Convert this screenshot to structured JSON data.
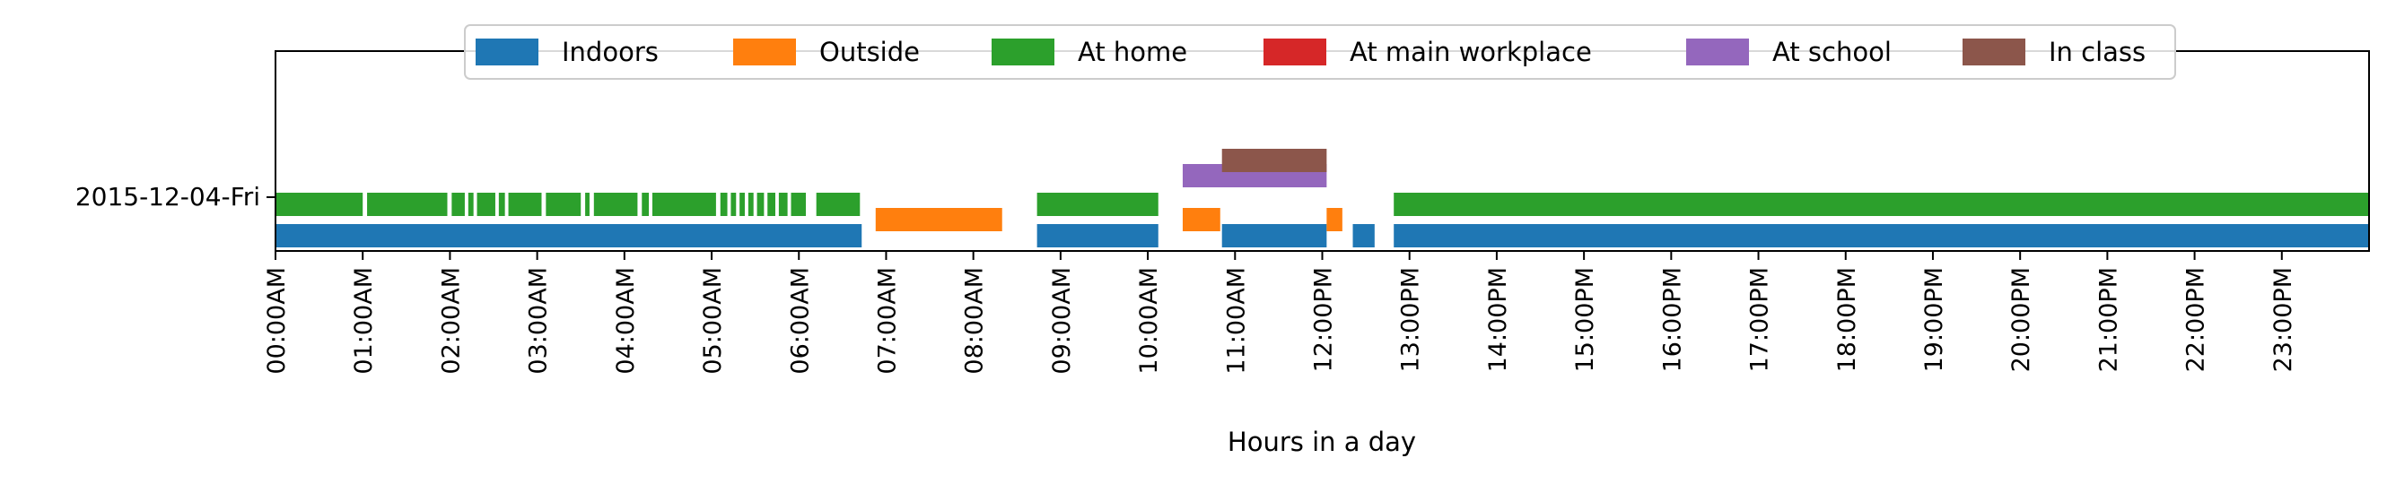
{
  "chart_data": {
    "type": "timeline",
    "xlabel": "Hours in a day",
    "ylabel": "",
    "xlim_hours": [
      0,
      24
    ],
    "row_label": "2015-12-04-Fri",
    "x_tick_labels": [
      "00:00AM",
      "01:00AM",
      "02:00AM",
      "03:00AM",
      "04:00AM",
      "05:00AM",
      "06:00AM",
      "07:00AM",
      "08:00AM",
      "09:00AM",
      "10:00AM",
      "11:00AM",
      "12:00PM",
      "13:00PM",
      "14:00PM",
      "15:00PM",
      "16:00PM",
      "17:00PM",
      "18:00PM",
      "19:00PM",
      "20:00PM",
      "21:00PM",
      "22:00PM",
      "23:00PM"
    ],
    "legend_position": "top-center",
    "grid": false,
    "series": [
      {
        "name": "Indoors",
        "color": "#1f77b4",
        "intervals": [
          [
            0,
            6.72
          ],
          [
            8.73,
            10.12
          ],
          [
            10.85,
            12.05
          ],
          [
            12.35,
            12.6
          ],
          [
            12.82,
            24
          ]
        ]
      },
      {
        "name": "Outside",
        "color": "#ff7f0e",
        "intervals": [
          [
            6.88,
            8.33
          ],
          [
            10.4,
            10.83
          ],
          [
            12.05,
            12.23
          ]
        ]
      },
      {
        "name": "At home",
        "color": "#2ca02c",
        "intervals": [
          [
            0,
            1.0
          ],
          [
            1.05,
            1.97
          ],
          [
            2.02,
            2.17
          ],
          [
            2.21,
            2.27
          ],
          [
            2.31,
            2.52
          ],
          [
            2.56,
            2.63
          ],
          [
            2.67,
            3.05
          ],
          [
            3.1,
            3.5
          ],
          [
            3.55,
            3.6
          ],
          [
            3.65,
            4.15
          ],
          [
            4.2,
            4.28
          ],
          [
            4.32,
            5.05
          ],
          [
            5.1,
            5.18
          ],
          [
            5.22,
            5.28
          ],
          [
            5.32,
            5.38
          ],
          [
            5.42,
            5.48
          ],
          [
            5.52,
            5.6
          ],
          [
            5.64,
            5.73
          ],
          [
            5.77,
            5.87
          ],
          [
            5.91,
            6.08
          ],
          [
            6.2,
            6.7
          ],
          [
            8.73,
            10.12
          ],
          [
            12.82,
            24
          ]
        ]
      },
      {
        "name": "At main workplace",
        "color": "#d62728",
        "intervals": []
      },
      {
        "name": "At school",
        "color": "#9467bd",
        "intervals": [
          [
            10.4,
            12.05
          ]
        ]
      },
      {
        "name": "In class",
        "color": "#8c564b",
        "intervals": [
          [
            10.85,
            12.05
          ]
        ]
      }
    ]
  }
}
